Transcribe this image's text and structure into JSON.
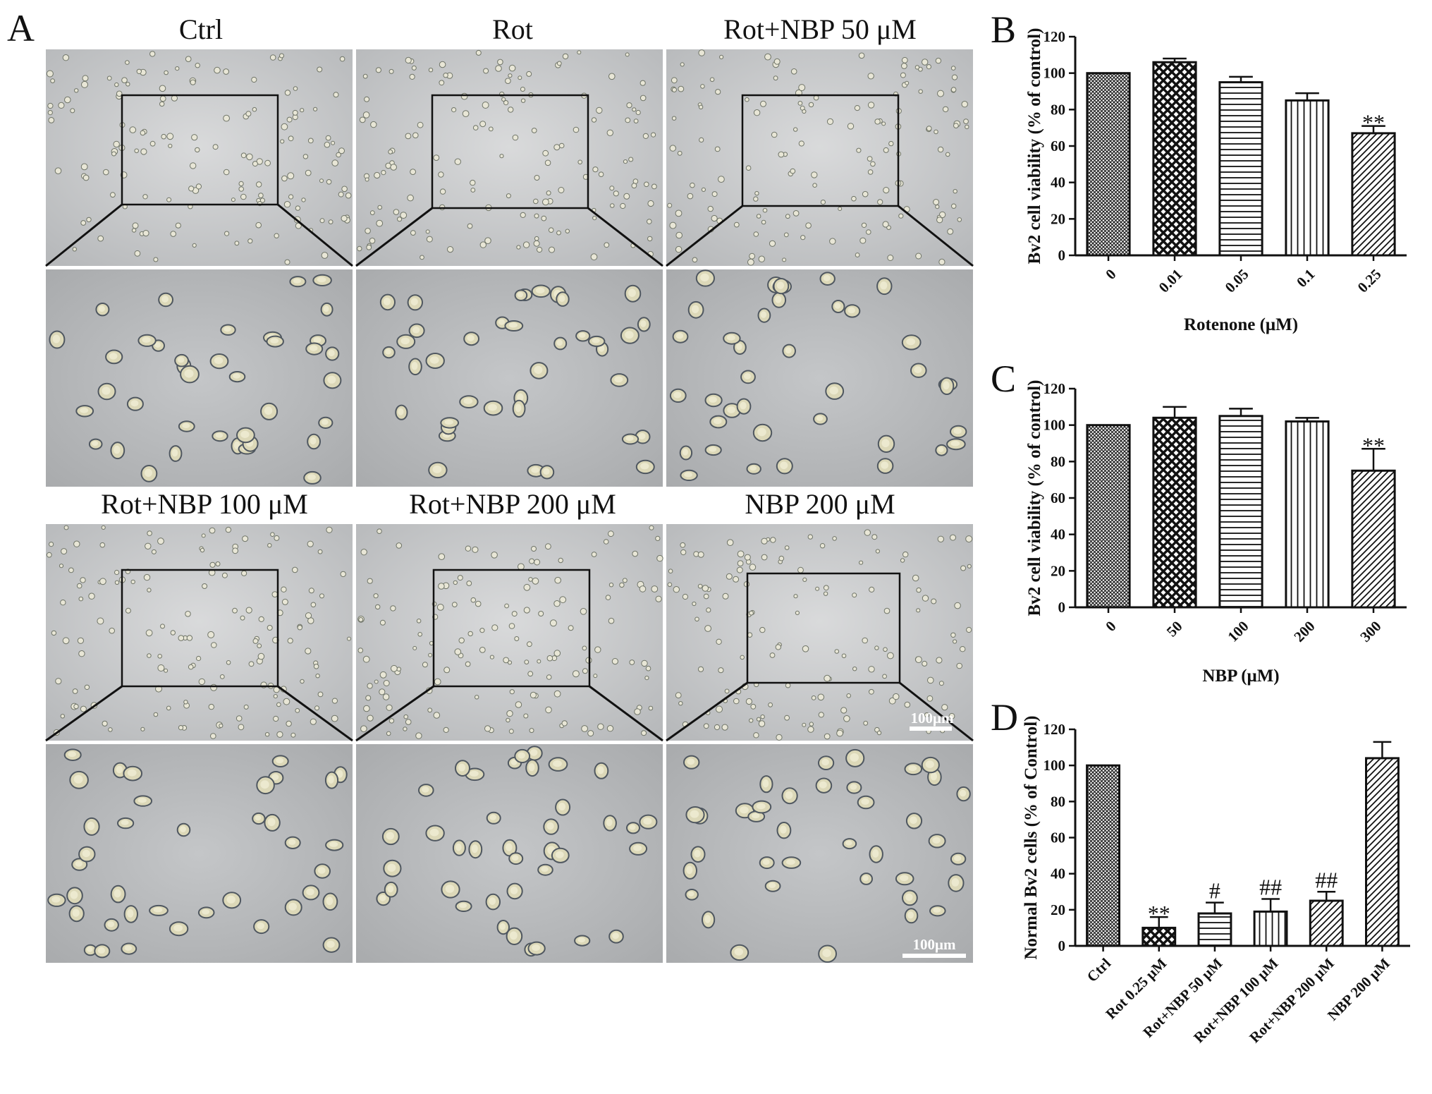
{
  "panel_letters": [
    "A",
    "B",
    "C",
    "D"
  ],
  "micrographs": {
    "titles": [
      "Ctrl",
      "Rot",
      "Rot+NBP 50 μM",
      "Rot+NBP 100 μM",
      "Rot+NBP 200 μM",
      "NBP 200 μM"
    ],
    "scale_bar_label": "100μm"
  },
  "chart_data": [
    {
      "panel": "B",
      "type": "bar",
      "categories": [
        "0",
        "0.01",
        "0.05",
        "0.1",
        "0.25"
      ],
      "values": [
        100,
        106,
        95,
        85,
        67
      ],
      "errors": [
        0,
        2,
        3,
        4,
        4
      ],
      "patterns": [
        "fine-cross",
        "checker",
        "horizontal",
        "vertical",
        "diagonal"
      ],
      "significance": [
        "",
        "",
        "",
        "",
        "**"
      ],
      "xlabel": "Rotenone (μM)",
      "ylabel": "Bv2 cell viability (% of control)",
      "ylim": [
        0,
        120
      ],
      "yticks": [
        0,
        20,
        40,
        60,
        80,
        100,
        120
      ]
    },
    {
      "panel": "C",
      "type": "bar",
      "categories": [
        "0",
        "50",
        "100",
        "200",
        "300"
      ],
      "values": [
        100,
        104,
        105,
        102,
        75
      ],
      "errors": [
        0,
        6,
        4,
        2,
        12
      ],
      "patterns": [
        "fine-cross",
        "checker",
        "horizontal",
        "vertical",
        "diagonal"
      ],
      "significance": [
        "",
        "",
        "",
        "",
        "**"
      ],
      "xlabel": "NBP (μM)",
      "ylabel": "Bv2 cell viability (% of control)",
      "ylim": [
        0,
        120
      ],
      "yticks": [
        0,
        20,
        40,
        60,
        80,
        100,
        120
      ]
    },
    {
      "panel": "D",
      "type": "bar",
      "categories": [
        "Ctrl",
        "Rot 0.25 μM",
        "Rot+NBP 50 μM",
        "Rot+NBP 100 μM",
        "Rot+NBP 200 μM",
        "NBP 200 μM"
      ],
      "values": [
        100,
        10,
        18,
        19,
        25,
        104
      ],
      "errors": [
        0,
        6,
        6,
        7,
        5,
        9
      ],
      "patterns": [
        "fine-cross",
        "checker",
        "horizontal",
        "vertical",
        "diagonal",
        "diagonal"
      ],
      "significance": [
        "",
        "**",
        "#",
        "##",
        "##",
        ""
      ],
      "xlabel": "",
      "ylabel": "Normal Bv2 cells (% of Control)",
      "ylim": [
        0,
        120
      ],
      "yticks": [
        0,
        20,
        40,
        60,
        80,
        100,
        120
      ]
    }
  ]
}
